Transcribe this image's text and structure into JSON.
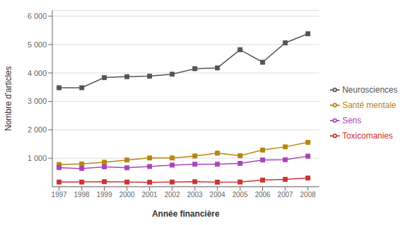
{
  "chart_data": {
    "type": "line",
    "x": [
      1997,
      1998,
      1999,
      2000,
      2001,
      2002,
      2003,
      2004,
      2005,
      2006,
      2007,
      2008
    ],
    "xlabel": "Année financière",
    "ylabel": "Nombre d'articles",
    "xlim": [
      1996.7,
      2008.5
    ],
    "xticks": [
      1997,
      1998,
      1999,
      2000,
      2001,
      2002,
      2003,
      2004,
      2005,
      2006,
      2007,
      2008
    ],
    "ylim": [
      0,
      6200
    ],
    "yticks": [
      {
        "value": 1000,
        "label": "1 000"
      },
      {
        "value": 2000,
        "label": "2 000"
      },
      {
        "value": 3000,
        "label": "3 000"
      },
      {
        "value": 4000,
        "label": "4 000"
      },
      {
        "value": 5000,
        "label": "5 000"
      },
      {
        "value": 6000,
        "label": "6 000"
      }
    ],
    "grid": true,
    "legend": "right",
    "marker": "square",
    "series": [
      {
        "name": "Neurosciences",
        "color": "#555555",
        "values": [
          3480,
          3480,
          3840,
          3870,
          3890,
          3960,
          4150,
          4180,
          4820,
          4380,
          5060,
          5380
        ]
      },
      {
        "name": "Santé mentale",
        "color": "#b8860b",
        "values": [
          780,
          800,
          860,
          940,
          1010,
          1010,
          1080,
          1180,
          1090,
          1290,
          1400,
          1560
        ]
      },
      {
        "name": "Toxicomanies",
        "color": "#cc3333",
        "values": [
          165,
          165,
          175,
          165,
          155,
          165,
          175,
          160,
          165,
          230,
          260,
          305
        ]
      },
      {
        "name": "Sens",
        "color": "#aa44bb",
        "values": [
          670,
          640,
          700,
          665,
          710,
          760,
          790,
          790,
          820,
          940,
          950,
          1075
        ]
      }
    ]
  }
}
